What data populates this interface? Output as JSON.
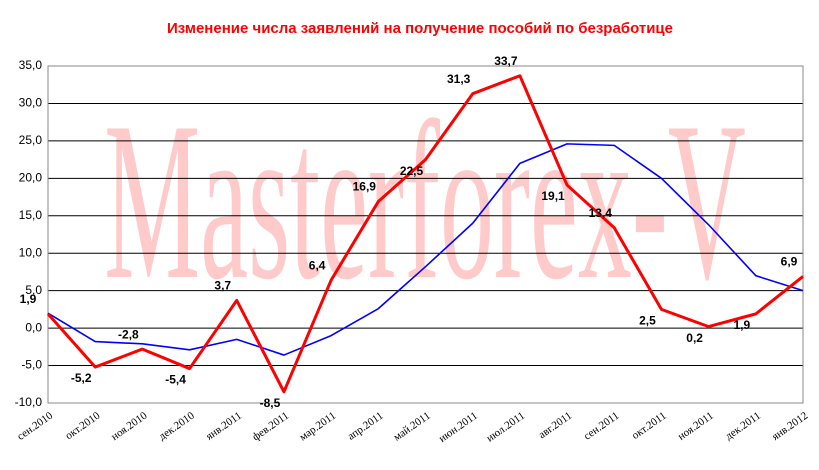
{
  "chart_data": {
    "type": "line",
    "title": "Изменение числа заявлений на получение пособий по безработице",
    "watermark": "Masterforex-V",
    "categories": [
      "сен.2010",
      "окт.2010",
      "ноя.2010",
      "дек.2010",
      "янв.2011",
      "фев.2011",
      "мар.2011",
      "апр.2011",
      "май.2011",
      "июн.2011",
      "июл.2011",
      "авг.2011",
      "сен.2011",
      "окт.2011",
      "ноя.2011",
      "дек.2011",
      "янв.2012"
    ],
    "series": [
      {
        "color": "#ff0000",
        "values": [
          1.9,
          -5.2,
          -2.8,
          -5.4,
          3.7,
          -8.5,
          6.4,
          16.9,
          22.5,
          31.3,
          33.7,
          19.1,
          13.4,
          2.5,
          0.2,
          1.9,
          6.9
        ],
        "value_labels": [
          "1,9",
          "-5,2",
          "-2,8",
          "-5,4",
          "3,7",
          "-8,5",
          "6,4",
          "16,9",
          "22,5",
          "31,3",
          "33,7",
          "19,1",
          "13,4",
          "2,5",
          "0,2",
          "1,9",
          "6,9"
        ]
      },
      {
        "color": "#0000ff",
        "values": [
          2.0,
          -1.8,
          -2.1,
          -2.9,
          -1.5,
          -3.6,
          -1.0,
          2.6,
          8.2,
          14.0,
          22.0,
          24.6,
          24.4,
          20.0,
          13.8,
          7.0,
          5.0
        ]
      }
    ],
    "ylim": [
      -10,
      35
    ],
    "yticks": [
      {
        "value": -10,
        "label": "-10,0"
      },
      {
        "value": -5,
        "label": "-5,0"
      },
      {
        "value": 0,
        "label": "0,0"
      },
      {
        "value": 5,
        "label": "5,0"
      },
      {
        "value": 10,
        "label": "10,0"
      },
      {
        "value": 15,
        "label": "15,0"
      },
      {
        "value": 20,
        "label": "20,0"
      },
      {
        "value": 25,
        "label": "25,0"
      },
      {
        "value": 30,
        "label": "30,0"
      },
      {
        "value": 35,
        "label": "35,0"
      }
    ],
    "grid": true
  }
}
